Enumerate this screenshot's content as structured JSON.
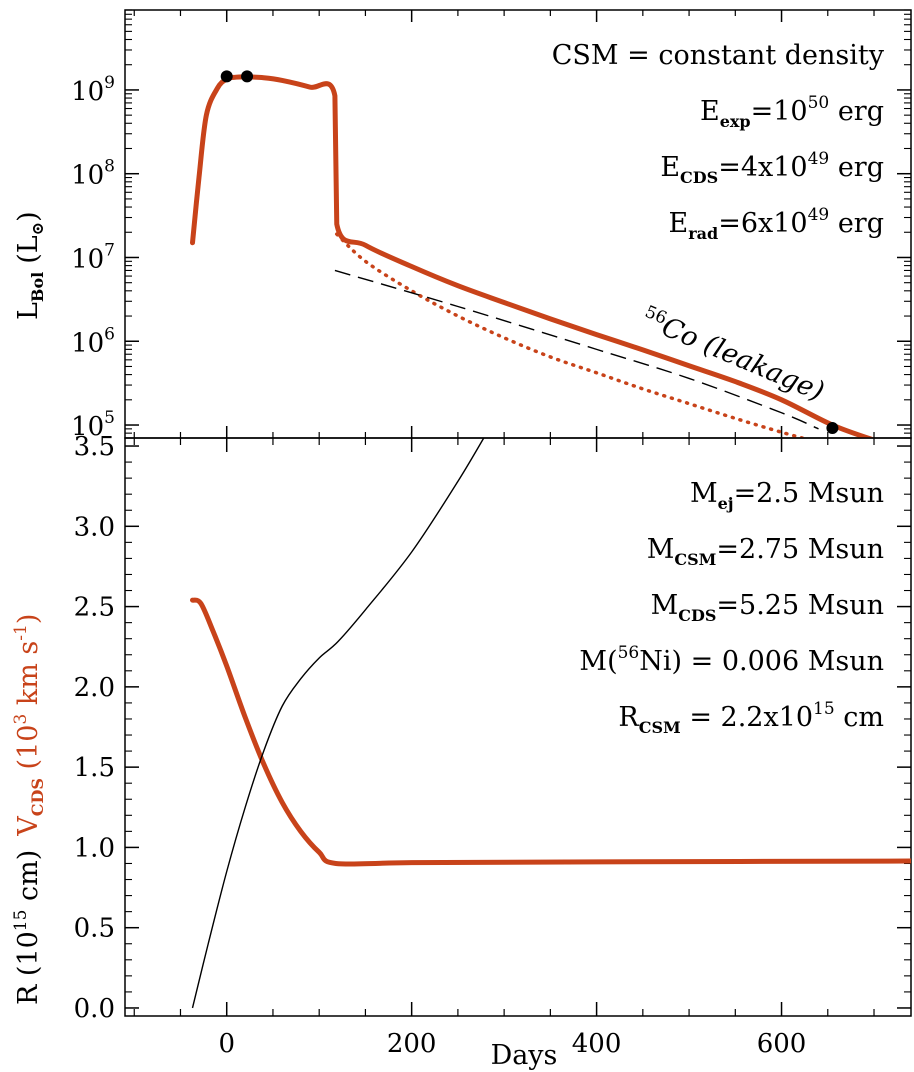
{
  "chart_data": [
    {
      "type": "line",
      "panel": "top",
      "ylabel": {
        "main": "L",
        "sub": "Bol",
        "unit_open": "(L",
        "unit_sub": "⊙",
        "unit_close": ")"
      },
      "yscale": "log",
      "ylim": [
        70000,
        9000000000
      ],
      "xlim": [
        -110,
        740
      ],
      "xticks": [
        0,
        200,
        400,
        600
      ],
      "yticks": [
        {
          "value": 100000,
          "base": "10",
          "exp": "5"
        },
        {
          "value": 1000000,
          "base": "10",
          "exp": "6"
        },
        {
          "value": 10000000,
          "base": "10",
          "exp": "7"
        },
        {
          "value": 100000000,
          "base": "10",
          "exp": "8"
        },
        {
          "value": 1000000000,
          "base": "10",
          "exp": "9"
        }
      ],
      "annotations": [
        {
          "base": "CSM = constant density",
          "sub": "",
          "mid": "",
          "sup": "",
          "tail": ""
        },
        {
          "base": "E",
          "sub": "exp",
          "mid": "=10",
          "sup": "50",
          "tail": " erg"
        },
        {
          "base": "E",
          "sub": "CDS",
          "mid": "=4x10",
          "sup": "49",
          "tail": " erg"
        },
        {
          "base": "E",
          "sub": "rad",
          "mid": "=6x10",
          "sup": "49",
          "tail": " erg"
        }
      ],
      "leakage_label": {
        "sup": "56",
        "text": "Co (leakage)"
      },
      "series": [
        {
          "style": "solid-thick",
          "color": "#c8431a",
          "points": [
            [
              -37,
              15000000
            ],
            [
              -30,
              90000000
            ],
            [
              -22,
              500000000
            ],
            [
              -10,
              1050000000
            ],
            [
              0,
              1350000000
            ],
            [
              10,
              1420000000
            ],
            [
              22,
              1430000000
            ],
            [
              40,
              1400000000
            ],
            [
              60,
              1300000000
            ],
            [
              90,
              1080000000
            ],
            [
              117,
              850000000
            ],
            [
              119,
              25000000
            ],
            [
              150,
              14000000
            ],
            [
              200,
              7800000
            ],
            [
              250,
              4600000
            ],
            [
              300,
              2900000
            ],
            [
              350,
              1850000
            ],
            [
              400,
              1200000
            ],
            [
              450,
              790000
            ],
            [
              500,
              510000
            ],
            [
              550,
              330000
            ],
            [
              600,
              200000
            ],
            [
              655,
              100000
            ],
            [
              700,
              66000
            ]
          ]
        },
        {
          "style": "dotted",
          "color": "#c8431a",
          "points": [
            [
              119,
              19000000
            ],
            [
              150,
              9000000
            ],
            [
              200,
              4000000
            ],
            [
              250,
              2000000
            ],
            [
              300,
              1100000
            ],
            [
              350,
              650000
            ],
            [
              400,
              420000
            ],
            [
              450,
              270000
            ],
            [
              500,
              180000
            ],
            [
              550,
              120000
            ],
            [
              600,
              82000
            ],
            [
              640,
              62000
            ]
          ]
        },
        {
          "style": "dashed",
          "color": "#000000",
          "points": [
            [
              117,
              7000000
            ],
            [
              250,
              2600000
            ],
            [
              400,
              800000
            ],
            [
              500,
              360000
            ],
            [
              600,
              140000
            ],
            [
              640,
              90000
            ]
          ]
        }
      ],
      "markers": [
        [
          0,
          1450000000
        ],
        [
          22,
          1450000000
        ],
        [
          655,
          92000
        ]
      ]
    },
    {
      "type": "line",
      "panel": "bottom",
      "xlabel": "Days",
      "ylabel": {
        "r_label": "R (10",
        "r_sup": "15",
        "r_unit": " cm)",
        "v_label": "V",
        "v_sub": "CDS",
        "v_unit": " (10",
        "v_sup": "3",
        "v_unit2": " km s",
        "v_sup2": "-1",
        "v_close": ")"
      },
      "ylim": [
        -0.05,
        3.55
      ],
      "xlim": [
        -110,
        740
      ],
      "xticks": [
        0,
        200,
        400,
        600
      ],
      "xticklabels": [
        "0",
        "200",
        "400",
        "600"
      ],
      "yticks": [
        0.0,
        0.5,
        1.0,
        1.5,
        2.0,
        2.5,
        3.0,
        3.5
      ],
      "yticklabels": [
        "0.0",
        "0.5",
        "1.0",
        "1.5",
        "2.0",
        "2.5",
        "3.0",
        "3.5"
      ],
      "annotations": [
        {
          "base": "M",
          "sub": "ej",
          "mid": "=2.5 Msun",
          "sup": "",
          "tail": ""
        },
        {
          "base": "M",
          "sub": "CSM",
          "mid": "=2.75 Msun",
          "sup": "",
          "tail": ""
        },
        {
          "base": "M",
          "sub": "CDS",
          "mid": "=5.25 Msun",
          "sup": "",
          "tail": ""
        },
        {
          "base": "M(",
          "sub": "",
          "mid": "",
          "sup": "56",
          "tail": "Ni) = 0.006 Msun"
        },
        {
          "base": "R",
          "sub": "CSM",
          "mid": " = 2.2x10",
          "sup": "15",
          "tail": " cm"
        }
      ],
      "series": [
        {
          "name_ref": "V_CDS",
          "style": "solid-thick",
          "color": "#c8431a",
          "points": [
            [
              -37,
              2.54
            ],
            [
              -28,
              2.52
            ],
            [
              -15,
              2.35
            ],
            [
              0,
              2.13
            ],
            [
              20,
              1.81
            ],
            [
              40,
              1.52
            ],
            [
              60,
              1.28
            ],
            [
              80,
              1.1
            ],
            [
              100,
              0.97
            ],
            [
              118,
              0.9
            ],
            [
              200,
              0.905
            ],
            [
              400,
              0.91
            ],
            [
              740,
              0.915
            ]
          ]
        },
        {
          "name_ref": "R",
          "style": "solid-thin",
          "color": "#000000",
          "points": [
            [
              -37,
              0.0
            ],
            [
              -20,
              0.4
            ],
            [
              0,
              0.85
            ],
            [
              20,
              1.25
            ],
            [
              40,
              1.6
            ],
            [
              60,
              1.88
            ],
            [
              80,
              2.05
            ],
            [
              100,
              2.18
            ],
            [
              120,
              2.28
            ],
            [
              150,
              2.48
            ],
            [
              200,
              2.84
            ],
            [
              250,
              3.28
            ],
            [
              283,
              3.6
            ]
          ]
        }
      ]
    }
  ]
}
